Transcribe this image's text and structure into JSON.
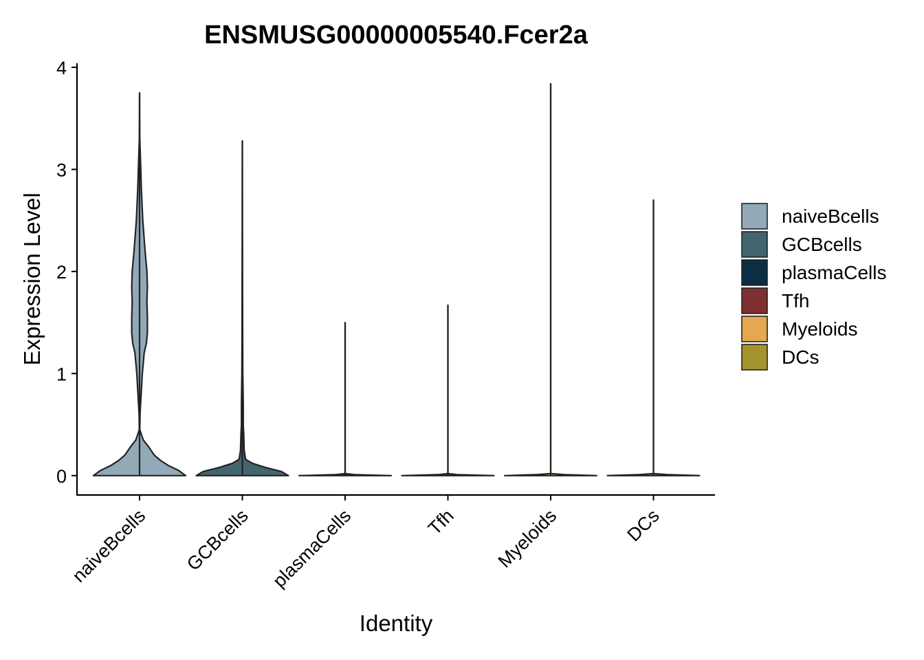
{
  "chart_data": {
    "type": "violin",
    "title": "ENSMUSG00000005540.Fcer2a",
    "xlabel": "Identity",
    "ylabel": "Expression Level",
    "ylim": [
      -0.19,
      4.04
    ],
    "yticks": [
      "0",
      "1",
      "2",
      "3",
      "4"
    ],
    "categories": [
      "naiveBcells",
      "GCBcells",
      "plasmaCells",
      "Tfh",
      "Myeloids",
      "DCs"
    ],
    "colors": [
      "#92AAB8",
      "#436570",
      "#0B2E45",
      "#7E302F",
      "#E5A84E",
      "#A5932E"
    ],
    "legend_position": "right",
    "grid": false,
    "series": [
      {
        "name": "naiveBcells",
        "max": 3.75,
        "density": [
          [
            0.0,
            1.0
          ],
          [
            0.05,
            0.85
          ],
          [
            0.1,
            0.62
          ],
          [
            0.15,
            0.45
          ],
          [
            0.2,
            0.32
          ],
          [
            0.28,
            0.2
          ],
          [
            0.35,
            0.08
          ],
          [
            0.45,
            0.005
          ],
          [
            0.6,
            0.01
          ],
          [
            0.8,
            0.035
          ],
          [
            1.0,
            0.06
          ],
          [
            1.2,
            0.1
          ],
          [
            1.3,
            0.15
          ],
          [
            1.4,
            0.17
          ],
          [
            1.55,
            0.17
          ],
          [
            1.7,
            0.16
          ],
          [
            1.85,
            0.17
          ],
          [
            2.0,
            0.16
          ],
          [
            2.2,
            0.12
          ],
          [
            2.5,
            0.07
          ],
          [
            2.8,
            0.04
          ],
          [
            3.1,
            0.02
          ],
          [
            3.3,
            0.005
          ],
          [
            3.5,
            0.002
          ],
          [
            3.75,
            0.0
          ]
        ]
      },
      {
        "name": "GCBcells",
        "max": 3.28,
        "density": [
          [
            0.0,
            1.0
          ],
          [
            0.04,
            0.85
          ],
          [
            0.08,
            0.5
          ],
          [
            0.12,
            0.22
          ],
          [
            0.16,
            0.07
          ],
          [
            0.25,
            0.04
          ],
          [
            0.4,
            0.03
          ],
          [
            0.5,
            0.02
          ],
          [
            0.7,
            0.02
          ],
          [
            1.0,
            0.01
          ],
          [
            1.5,
            0.006
          ],
          [
            2.0,
            0.004
          ],
          [
            2.5,
            0.002
          ],
          [
            3.28,
            0.0
          ]
        ]
      },
      {
        "name": "plasmaCells",
        "max": 1.5,
        "density": [
          [
            0.0,
            1.0
          ],
          [
            0.01,
            0.2
          ],
          [
            0.02,
            0.0
          ],
          [
            1.5,
            0.0
          ]
        ]
      },
      {
        "name": "Tfh",
        "max": 1.67,
        "density": [
          [
            0.0,
            1.0
          ],
          [
            0.01,
            0.2
          ],
          [
            0.02,
            0.0
          ],
          [
            1.67,
            0.0
          ]
        ]
      },
      {
        "name": "Myeloids",
        "max": 3.84,
        "density": [
          [
            0.0,
            1.0
          ],
          [
            0.01,
            0.3
          ],
          [
            0.02,
            0.0
          ],
          [
            3.84,
            0.0
          ]
        ]
      },
      {
        "name": "DCs",
        "max": 2.7,
        "density": [
          [
            0.0,
            1.0
          ],
          [
            0.01,
            0.3
          ],
          [
            0.02,
            0.0
          ],
          [
            2.7,
            0.0
          ]
        ]
      }
    ]
  }
}
